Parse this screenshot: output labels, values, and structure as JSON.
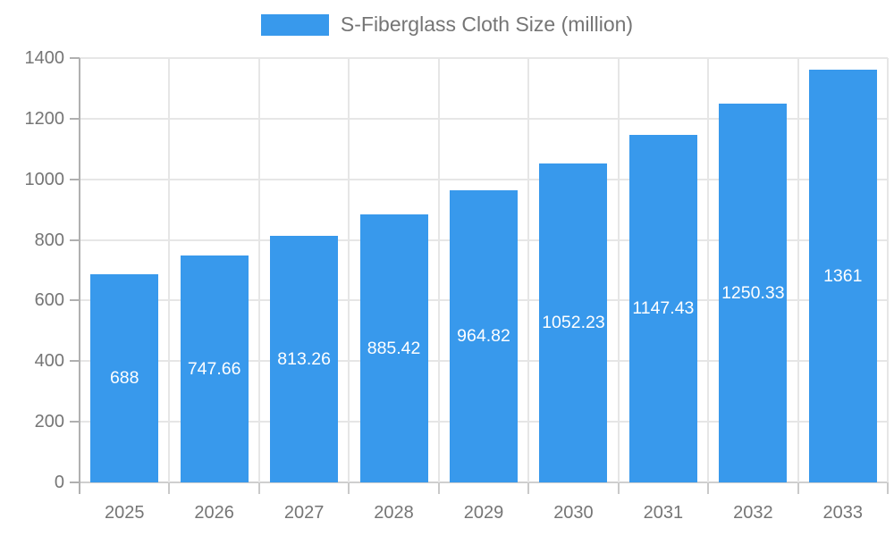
{
  "chart_data": {
    "type": "bar",
    "title": "S-Fiberglass Cloth Size (million)",
    "categories": [
      "2025",
      "2026",
      "2027",
      "2028",
      "2029",
      "2030",
      "2031",
      "2032",
      "2033"
    ],
    "values": [
      688,
      747.66,
      813.26,
      885.42,
      964.82,
      1052.23,
      1147.43,
      1250.33,
      1361
    ],
    "value_labels": [
      "688",
      "747.66",
      "813.26",
      "885.42",
      "964.82",
      "1052.23",
      "1147.43",
      "1250.33",
      "1361"
    ],
    "xlabel": "",
    "ylabel": "",
    "ylim": [
      0,
      1400
    ],
    "yticks": [
      0,
      200,
      400,
      600,
      800,
      1000,
      1200,
      1400
    ],
    "legend_position": "top-center",
    "grid": true,
    "value_label_position": "center-of-bar",
    "colors": {
      "bar": "#3899EC",
      "value_text": "#ffffff",
      "axis_text": "#757575",
      "legend_text": "#757575",
      "grid_line": "#e6e6e6",
      "axis_line": "#b0b0b0",
      "background": "#ffffff"
    }
  }
}
